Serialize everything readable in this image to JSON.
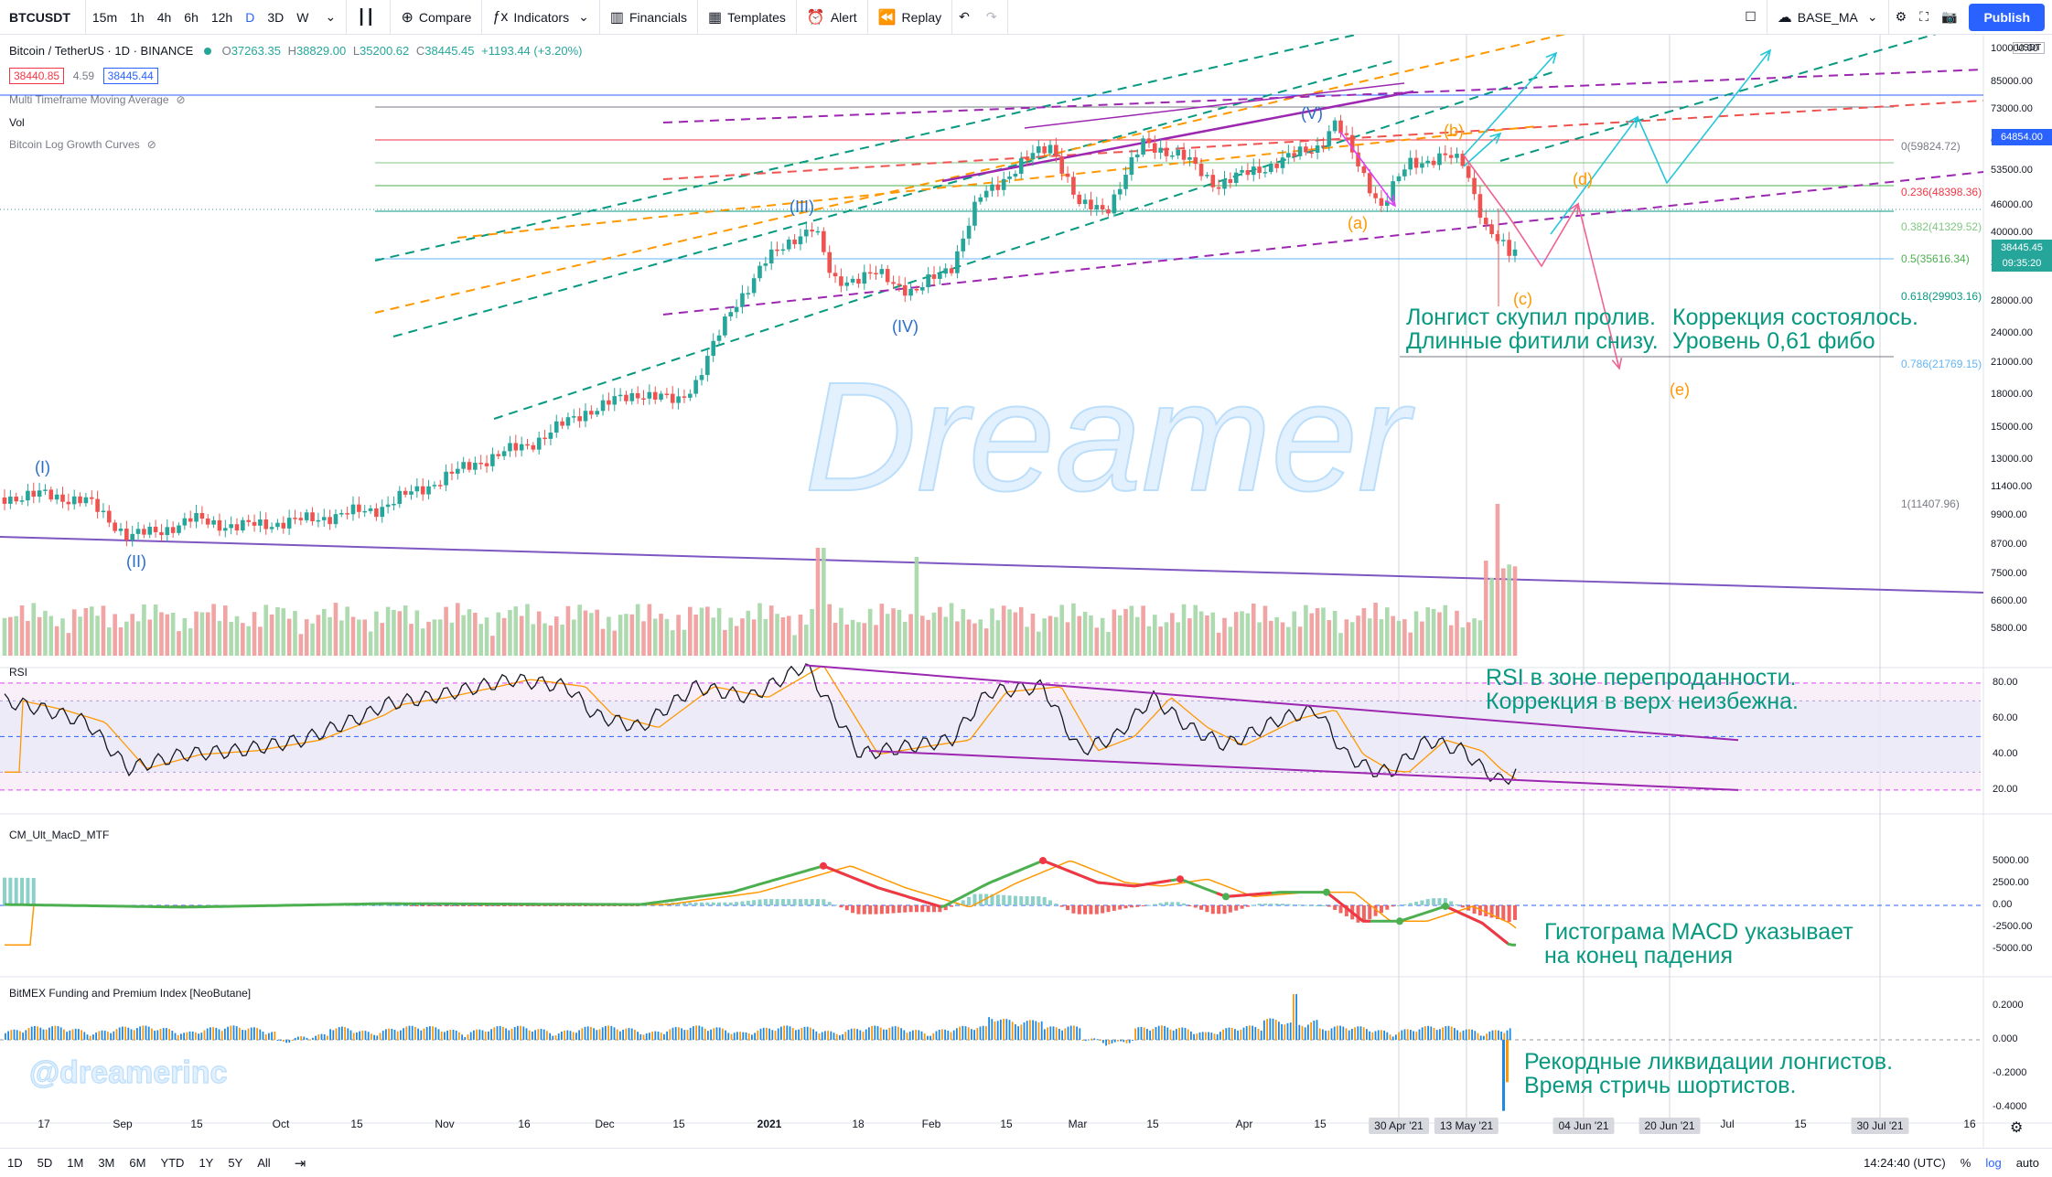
{
  "toolbar": {
    "symbol": "BTCUSDT",
    "intervals": [
      "15m",
      "1h",
      "4h",
      "6h",
      "12h",
      "D",
      "3D",
      "W"
    ],
    "active_interval": "D",
    "compare": "Compare",
    "indicators": "Indicators",
    "financials": "Financials",
    "templates": "Templates",
    "alert": "Alert",
    "replay": "Replay",
    "layout_name": "BASE_MA",
    "publish": "Publish"
  },
  "legend": {
    "title": "Bitcoin / TetherUS · 1D · BINANCE",
    "open_label": "O",
    "open": "37263.35",
    "high_label": "H",
    "high": "38829.00",
    "low_label": "L",
    "low": "35200.62",
    "close_label": "C",
    "close": "38445.45",
    "change": "+1193.44 (+3.20%)",
    "bid": "38440.85",
    "spread": "4.59",
    "ask": "38445.44",
    "indicator1": "Multi Timeframe Moving Average",
    "indicator2": "Vol",
    "indicator3": "Bitcoin Log Growth Curves"
  },
  "price_axis": {
    "currency": "USDT",
    "labels": [
      "100000.00",
      "85000.00",
      "73000.00",
      "61000.00",
      "53500.00",
      "46000.00",
      "40000.00",
      "34000.00",
      "28000.00",
      "24000.00",
      "21000.00",
      "18000.00",
      "15000.00",
      "13000.00",
      "11400.00",
      "9900.00",
      "8700.00",
      "7500.00",
      "6600.00",
      "5800.00"
    ],
    "tag_high": "64854.00",
    "tag_last": "38445.45",
    "tag_countdown": "09:35:20"
  },
  "fib_levels": [
    {
      "label": "0(59824.72)",
      "color": "#787b86"
    },
    {
      "label": "0.236(48398.36)",
      "color": "#f23645"
    },
    {
      "label": "0.382(41329.52)",
      "color": "#81c784"
    },
    {
      "label": "0.5(35616.34)",
      "color": "#4caf50"
    },
    {
      "label": "0.618(29903.16)",
      "color": "#089981"
    },
    {
      "label": "0.786(21769.15)",
      "color": "#64b5f6"
    },
    {
      "label": "1(11407.96)",
      "color": "#787b86"
    }
  ],
  "waves": {
    "I": "(I)",
    "II": "(II)",
    "III": "(III)",
    "IV": "(IV)",
    "V": "(V)",
    "a": "(a)",
    "b": "(b)",
    "c": "(c)",
    "d": "(d)",
    "e": "(e)"
  },
  "annotations": {
    "longist_1": "Лонгист скупил пролив.",
    "longist_2": "Длинные фитили снизу.",
    "correction_1": "Коррекция состоялось.",
    "correction_2": "Уровень 0,61 фибо",
    "rsi_1": "RSI в зоне перепроданности.",
    "rsi_2": "Коррекция в верх неизбежна.",
    "macd_1": "Гистограма MACD указывает",
    "macd_2": "на конец падения",
    "funding_1": "Рекордные ликвидации лонгистов.",
    "funding_2": "Время стричь шортистов."
  },
  "watermark": "Dreamer",
  "handle": "@dreamerinc",
  "rsi": {
    "title": "RSI",
    "labels": [
      "80.00",
      "60.00",
      "40.00",
      "20.00"
    ]
  },
  "macd": {
    "title": "CM_Ult_MacD_MTF",
    "labels": [
      "5000.00",
      "2500.00",
      "0.00",
      "-2500.00",
      "-5000.00"
    ]
  },
  "funding": {
    "title": "BitMEX Funding and Premium Index [NeoButane]",
    "labels": [
      "0.2000",
      "0.000",
      "-0.2000",
      "-0.4000"
    ]
  },
  "time_axis": {
    "labels": [
      "17",
      "Sep",
      "15",
      "Oct",
      "15",
      "Nov",
      "16",
      "Dec",
      "15",
      "2021",
      "18",
      "Feb",
      "15",
      "Mar",
      "15",
      "Apr",
      "15",
      "Jul",
      "15",
      "16"
    ],
    "highlight_labels": [
      "30 Apr '21",
      "13 May '21",
      "04 Jun '21",
      "20 Jun '21",
      "30 Jul '21"
    ]
  },
  "bottombar": {
    "ranges": [
      "1D",
      "5D",
      "1M",
      "3M",
      "6M",
      "YTD",
      "1Y",
      "5Y",
      "All"
    ],
    "time": "14:24:40 (UTC)",
    "percent": "%",
    "log": "log",
    "auto": "auto"
  },
  "colors": {
    "up": "#26a69a",
    "down": "#ef5350",
    "accent": "#2962ff",
    "purple": "#9c27b0",
    "teal_dash": "#089981",
    "orange": "#ff9800",
    "annotation": "#089981"
  }
}
